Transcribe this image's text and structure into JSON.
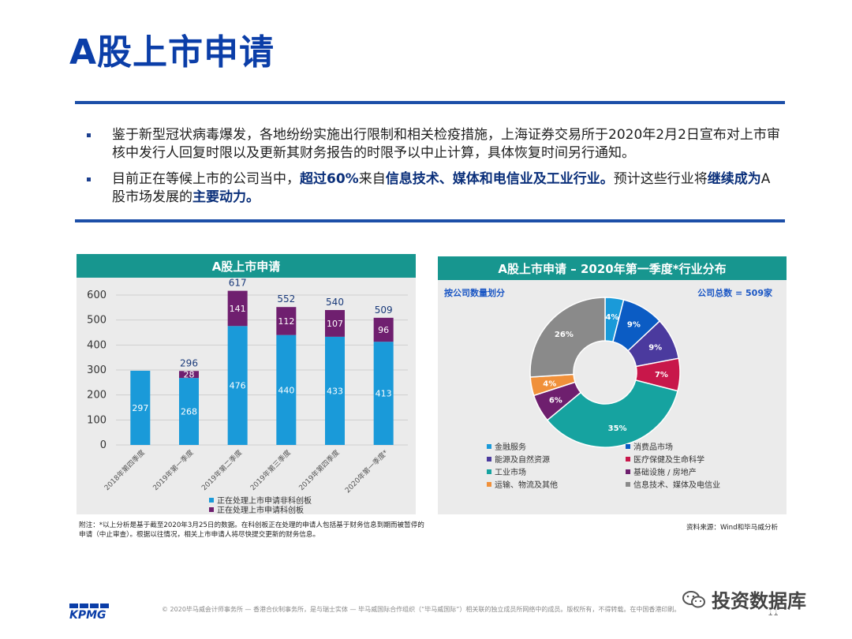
{
  "page": {
    "title": "A股上市申请",
    "bullets": [
      {
        "segments": [
          {
            "t": "鉴于新型冠状病毒爆发，各地纷纷实施出行限制和相关检疫措施，上海证券交易所于2020年2月2日宣布对上市审核中发行人回复时限以及更新其财务报告的时限予以中止计算，具体恢复时间另行通知。",
            "b": false
          }
        ]
      },
      {
        "segments": [
          {
            "t": "目前正在等候上市的公司当中，",
            "b": false
          },
          {
            "t": "超过60%",
            "b": true
          },
          {
            "t": "来自",
            "b": false
          },
          {
            "t": "信息技术、媒体和电信业及工业行业。",
            "b": true
          },
          {
            "t": "预计这些行业将",
            "b": false
          },
          {
            "t": "继续成为",
            "b": true
          },
          {
            "t": "A股市场发展的",
            "b": false
          },
          {
            "t": "主要动力。",
            "b": true
          }
        ]
      }
    ],
    "footnote": "附注：*以上分析是基于截至2020年3月25日的数据。在科创板正在处理的申请人包括基于财务信息到期而被暂停的申请（中止审查）。根据以往情况，相关上市申请人将尽快提交更新的财务信息。",
    "source": "资料来源：Wind和毕马威分析",
    "copyright": "© 2020毕马威会计师事务所 — 香港合伙制事务所，是与瑞士实体 — 毕马威国际合作组织（“毕马威国际”）相关联的独立成员所网络中的成员。版权所有，不得转载。在中国香港印刷。",
    "logo": "KPMG",
    "page_number": "11",
    "watermark": "投资数据库"
  },
  "colors": {
    "header": "#17968f",
    "title": "#0b3ea8",
    "bar_main": "#1a9ad9",
    "bar_star": "#6f1f6f"
  },
  "chart_data": [
    {
      "type": "bar",
      "title": "A股上市申请",
      "stacked": true,
      "categories": [
        "2018年第四季度",
        "2019年第一季度",
        "2019年第二季度",
        "2019年第三季度",
        "2019年第四季度",
        "2020年第一季度*"
      ],
      "series": [
        {
          "name": "正在处理上市申请非科创板",
          "color": "#1a9ad9",
          "values": [
            297,
            268,
            476,
            440,
            433,
            413
          ]
        },
        {
          "name": "正在处理上市申请科创板",
          "color": "#6f1f6f",
          "values": [
            0,
            28,
            141,
            112,
            107,
            96
          ]
        }
      ],
      "totals": [
        null,
        296,
        617,
        552,
        540,
        509
      ],
      "ylim": [
        0,
        600
      ],
      "yticks": [
        0,
        100,
        200,
        300,
        400,
        500,
        600
      ],
      "grid": true,
      "legend": "bottom"
    },
    {
      "type": "pie",
      "donut": true,
      "title": "A股上市申请 – 2020年第一季度*行业分布",
      "subtitle_left": "按公司数量划分",
      "subtitle_right": "公司总数 = 509家",
      "slices": [
        {
          "label": "金融服务",
          "value": 4,
          "text": "4%",
          "color": "#1a9ad9"
        },
        {
          "label": "消费品市场",
          "value": 9,
          "text": "9%",
          "color": "#0b5cc4"
        },
        {
          "label": "能源及自然资源",
          "value": 9,
          "text": "9%",
          "color": "#4b3a9e"
        },
        {
          "label": "医疗保健及生命科学",
          "value": 7,
          "text": "7%",
          "color": "#c8174a"
        },
        {
          "label": "工业市场",
          "value": 35,
          "text": "35%",
          "color": "#16a3a0"
        },
        {
          "label": "基础设施 / 房地产",
          "value": 6,
          "text": "6%",
          "color": "#6e1f6e"
        },
        {
          "label": "运输、物流及其他",
          "value": 4,
          "text": "4%",
          "color": "#f0903a"
        },
        {
          "label": "信息技术、媒体及电信业",
          "value": 26,
          "text": "26%",
          "color": "#8a8a8a"
        }
      ],
      "legend": "bottom"
    }
  ]
}
